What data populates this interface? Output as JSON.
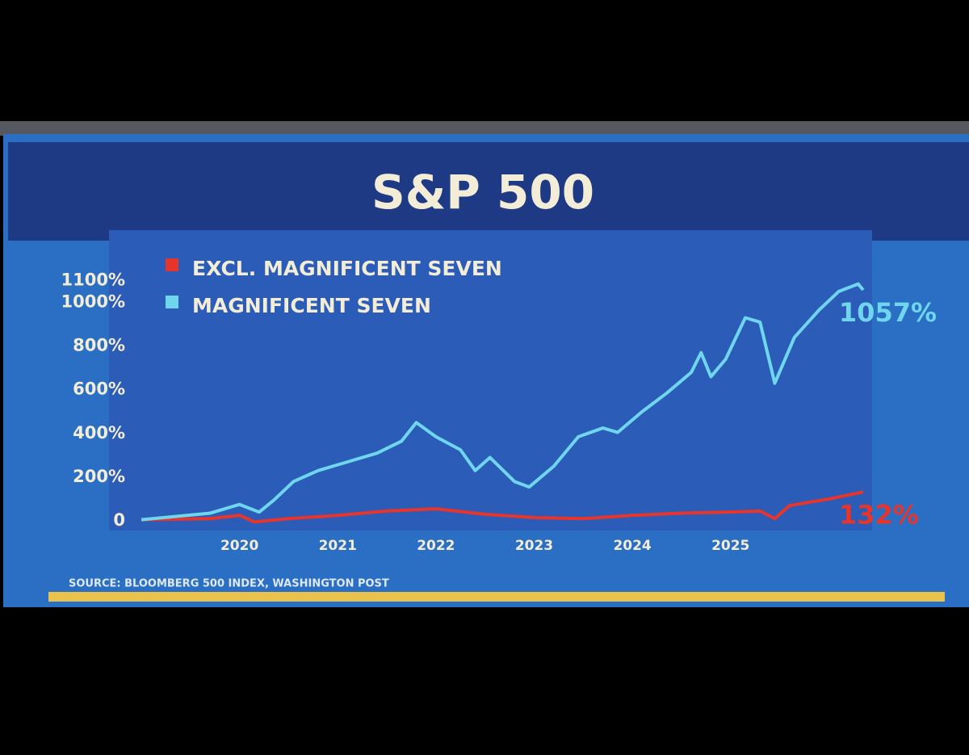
{
  "chart_data": {
    "type": "line",
    "title": "S&P 500",
    "source": "SOURCE: BLOOMBERG 500 INDEX, WASHINGTON POST",
    "series": [
      {
        "name": "EXCL. MAGNIFICENT SEVEN",
        "color": "#e8352b",
        "x": [
          2019.0,
          2019.7,
          2020.0,
          2020.15,
          2020.5,
          2021.0,
          2021.5,
          2022.0,
          2022.5,
          2023.0,
          2023.5,
          2024.0,
          2024.5,
          2025.0,
          2025.3,
          2025.45,
          2025.6,
          2026.0,
          2026.35
        ],
        "values": [
          5,
          10,
          25,
          -5,
          10,
          25,
          45,
          55,
          30,
          15,
          10,
          25,
          35,
          40,
          45,
          10,
          70,
          100,
          132
        ],
        "value_labels": [
          null,
          null,
          null,
          null,
          null,
          null,
          null,
          null,
          null,
          null,
          null,
          null,
          null,
          null,
          null,
          null,
          null,
          null,
          "132%"
        ]
      },
      {
        "name": "MAGNIFICENT SEVEN",
        "color": "#6fd6ee",
        "x": [
          2019.0,
          2019.7,
          2020.0,
          2020.2,
          2020.35,
          2020.55,
          2020.8,
          2021.1,
          2021.4,
          2021.65,
          2021.8,
          2022.0,
          2022.25,
          2022.4,
          2022.55,
          2022.8,
          2022.95,
          2023.2,
          2023.45,
          2023.7,
          2023.85,
          2024.1,
          2024.35,
          2024.6,
          2024.7,
          2024.8,
          2024.95,
          2025.15,
          2025.3,
          2025.45,
          2025.65,
          2025.9,
          2026.1,
          2026.3,
          2026.35
        ],
        "values": [
          5,
          35,
          75,
          40,
          95,
          180,
          230,
          270,
          310,
          365,
          450,
          385,
          325,
          230,
          290,
          180,
          155,
          250,
          385,
          425,
          405,
          500,
          585,
          680,
          770,
          660,
          740,
          930,
          910,
          630,
          840,
          965,
          1050,
          1085,
          1057
        ],
        "value_labels": [
          null,
          null,
          null,
          null,
          null,
          null,
          null,
          null,
          null,
          null,
          null,
          null,
          null,
          null,
          null,
          null,
          null,
          null,
          null,
          null,
          null,
          null,
          null,
          null,
          null,
          null,
          null,
          null,
          null,
          null,
          null,
          null,
          null,
          null,
          "1057%"
        ]
      }
    ],
    "xlim": [
      2019.0,
      2026.4
    ],
    "xticks": [
      2020,
      2021,
      2022,
      2023,
      2024,
      2025
    ],
    "ylim": [
      0,
      1150
    ],
    "yticks": [
      0,
      {
        "value": 200,
        "label": "200%"
      },
      {
        "value": 400,
        "label": "400%"
      },
      {
        "value": 600,
        "label": "600%"
      },
      {
        "value": 800,
        "label": "800%"
      },
      {
        "value": 1000,
        "label": "1000%"
      },
      {
        "value": 1100,
        "label": "1100%"
      }
    ]
  }
}
